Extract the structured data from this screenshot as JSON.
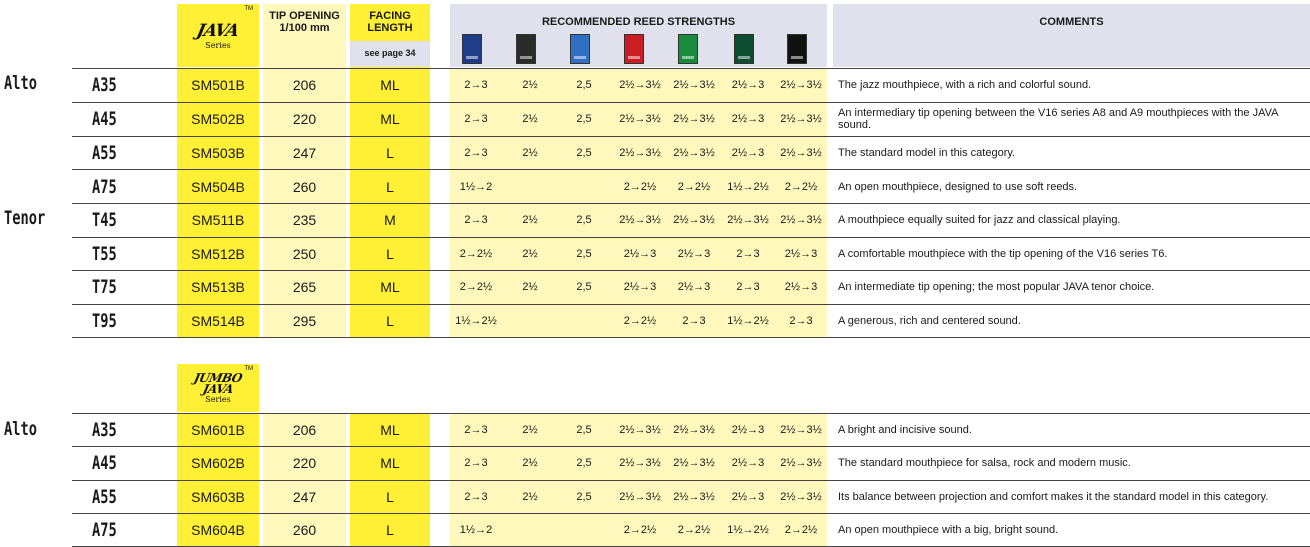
{
  "header": {
    "tip_opening": "TIP OPENING",
    "tip_opening_unit": "1/100 mm",
    "facing": "FACING",
    "length": "LENGTH",
    "see_page": "see page 34",
    "reeds": "RECOMMENDED REED STRENGTHS",
    "comments": "COMMENTS"
  },
  "logos": {
    "java": {
      "mark": "JAVA",
      "series": "Series",
      "tm": "TM"
    },
    "jumbo": {
      "mark_top": "JUMBO",
      "mark_bottom": "JAVA",
      "series": "Series",
      "tm": "TM"
    }
  },
  "reed_colors": [
    "#1f3d8a",
    "#2b2b2b",
    "#2f6fc4",
    "#c81e24",
    "#1a8a3c",
    "#0d4d32",
    "#111111"
  ],
  "colors": {
    "yellow": "#fff035",
    "pale_yellow": "#fff8bd",
    "lavender": "#e1e1ee"
  },
  "java": {
    "alto": {
      "label": "Alto",
      "rows": [
        {
          "model": "A35",
          "ref": "SM501B",
          "tip": "206",
          "facing": "ML",
          "reeds": [
            "2→3",
            "2½",
            "2,5",
            "2½→3½",
            "2½→3½",
            "2½→3",
            "2½→3½"
          ],
          "comment": "The jazz mouthpiece, with a rich and colorful sound."
        },
        {
          "model": "A45",
          "ref": "SM502B",
          "tip": "220",
          "facing": "ML",
          "reeds": [
            "2→3",
            "2½",
            "2,5",
            "2½→3½",
            "2½→3½",
            "2½→3",
            "2½→3½"
          ],
          "comment": "An intermediary tip opening between the V16 series A8 and A9 mouthpieces with the JAVA sound."
        },
        {
          "model": "A55",
          "ref": "SM503B",
          "tip": "247",
          "facing": "L",
          "reeds": [
            "2→3",
            "2½",
            "2,5",
            "2½→3½",
            "2½→3½",
            "2½→3",
            "2½→3½"
          ],
          "comment": "The standard model in this category."
        },
        {
          "model": "A75",
          "ref": "SM504B",
          "tip": "260",
          "facing": "L",
          "reeds": [
            "1½→2",
            "",
            "",
            "2→2½",
            "2→2½",
            "1½→2½",
            "2→2½"
          ],
          "comment": "An open mouthpiece, designed to use soft reeds."
        }
      ]
    },
    "tenor": {
      "label": "Tenor",
      "rows": [
        {
          "model": "T45",
          "ref": "SM511B",
          "tip": "235",
          "facing": "M",
          "reeds": [
            "2→3",
            "2½",
            "2,5",
            "2½→3½",
            "2½→3½",
            "2½→3½",
            "2½→3½"
          ],
          "comment": "A mouthpiece equally suited for jazz and classical playing."
        },
        {
          "model": "T55",
          "ref": "SM512B",
          "tip": "250",
          "facing": "L",
          "reeds": [
            "2→2½",
            "2½",
            "2,5",
            "2½→3",
            "2½→3",
            "2→3",
            "2½→3"
          ],
          "comment": "A comfortable mouthpiece with the tip opening of the V16 series T6."
        },
        {
          "model": "T75",
          "ref": "SM513B",
          "tip": "265",
          "facing": "ML",
          "reeds": [
            "2→2½",
            "2½",
            "2,5",
            "2½→3",
            "2½→3",
            "2→3",
            "2½→3"
          ],
          "comment": "An intermediate tip opening; the most popular JAVA tenor choice."
        },
        {
          "model": "T95",
          "ref": "SM514B",
          "tip": "295",
          "facing": "L",
          "reeds": [
            "1½→2½",
            "",
            "",
            "2→2½",
            "2→3",
            "1½→2½",
            "2→3"
          ],
          "comment": "A generous, rich and centered sound."
        }
      ]
    }
  },
  "jumbo": {
    "alto": {
      "label": "Alto",
      "rows": [
        {
          "model": "A35",
          "ref": "SM601B",
          "tip": "206",
          "facing": "ML",
          "reeds": [
            "2→3",
            "2½",
            "2,5",
            "2½→3½",
            "2½→3½",
            "2½→3",
            "2½→3½"
          ],
          "comment": "A bright and incisive sound."
        },
        {
          "model": "A45",
          "ref": "SM602B",
          "tip": "220",
          "facing": "ML",
          "reeds": [
            "2→3",
            "2½",
            "2,5",
            "2½→3½",
            "2½→3½",
            "2½→3",
            "2½→3½"
          ],
          "comment": "The standard mouthpiece for salsa, rock and modern music."
        },
        {
          "model": "A55",
          "ref": "SM603B",
          "tip": "247",
          "facing": "L",
          "reeds": [
            "2→3",
            "2½",
            "2,5",
            "2½→3½",
            "2½→3½",
            "2½→3",
            "2½→3½"
          ],
          "comment": "Its balance between projection and comfort makes it the standard model in this category."
        },
        {
          "model": "A75",
          "ref": "SM604B",
          "tip": "260",
          "facing": "L",
          "reeds": [
            "1½→2",
            "",
            "",
            "2→2½",
            "2→2½",
            "1½→2½",
            "2→2½"
          ],
          "comment": "An open mouthpiece with a big, bright sound."
        }
      ]
    }
  }
}
